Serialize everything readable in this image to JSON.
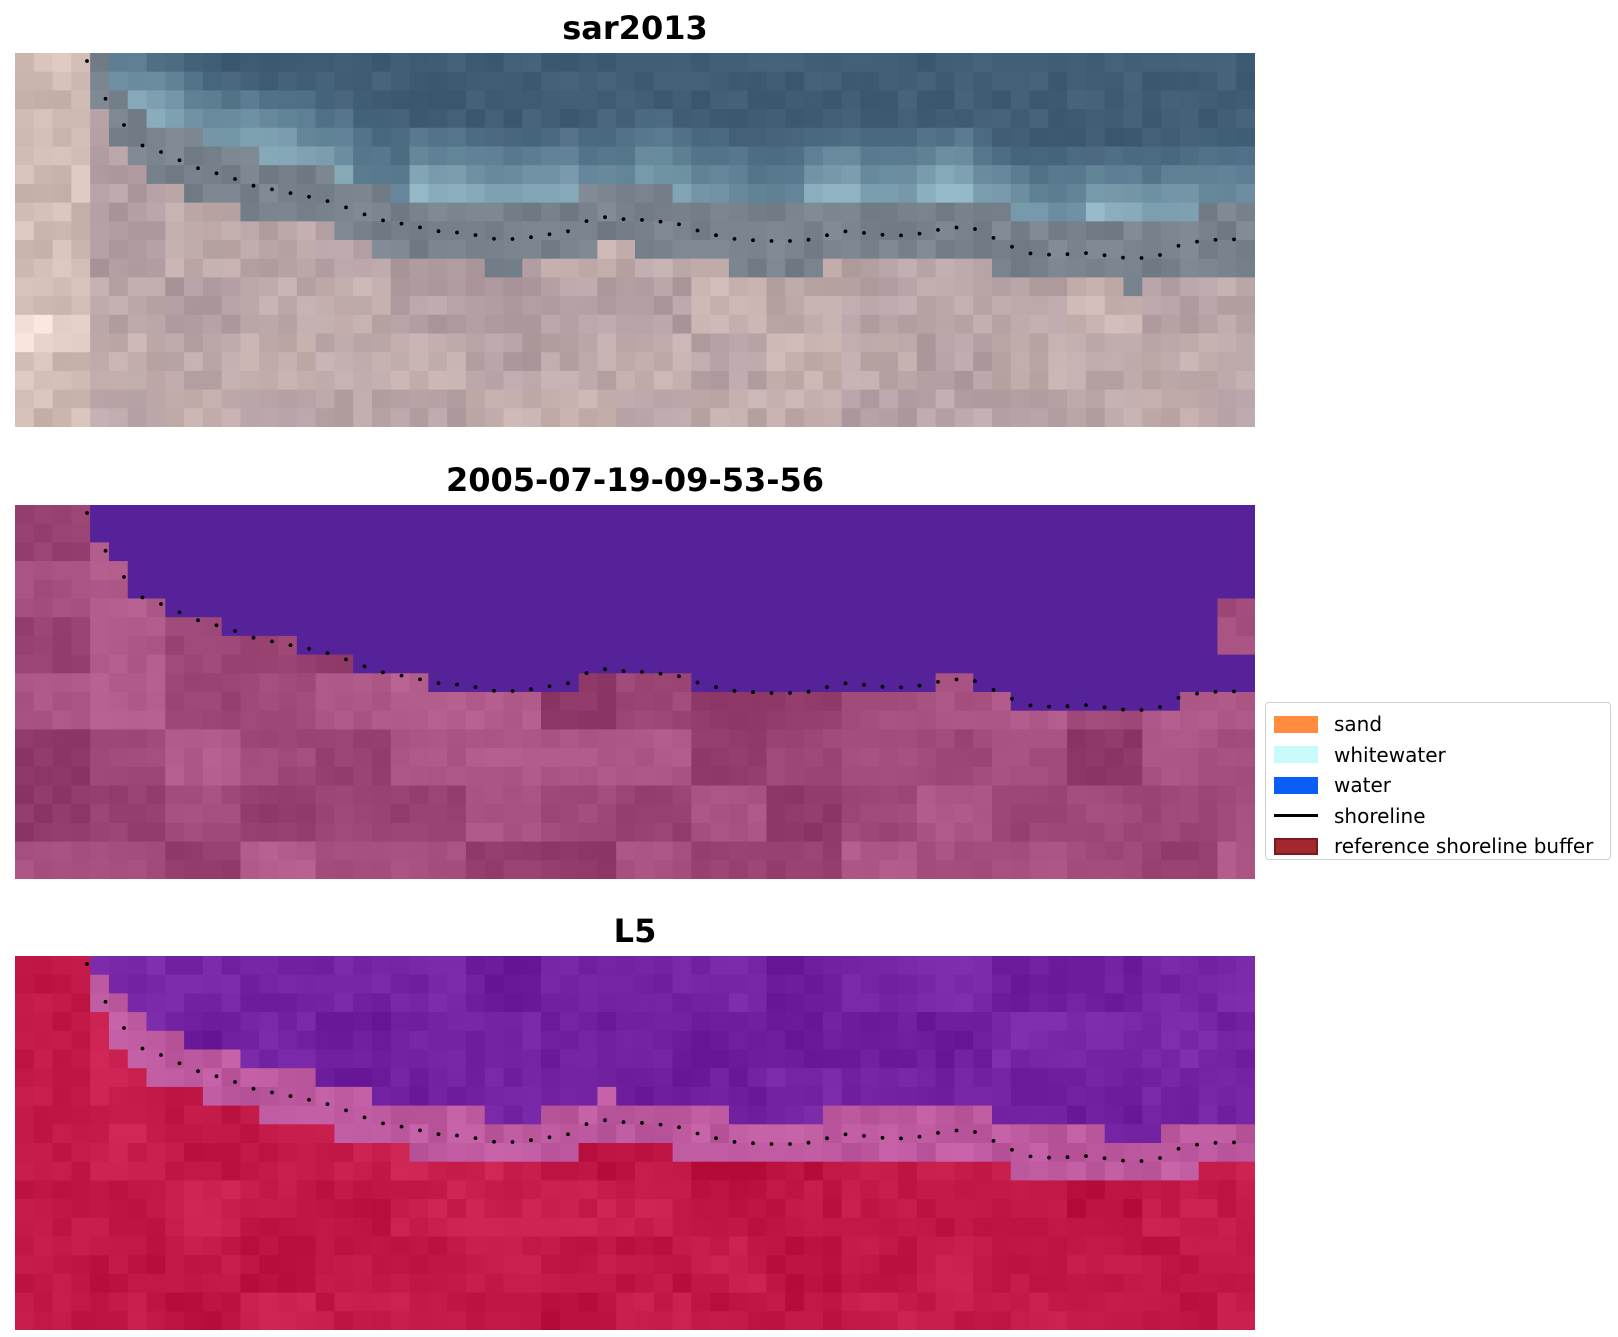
{
  "panels": [
    {
      "id": "rgb",
      "title": "sar2013"
    },
    {
      "id": "classified",
      "title": "2005-07-19-09-53-56"
    },
    {
      "id": "mndwi",
      "title": "L5"
    }
  ],
  "legend": {
    "items": [
      {
        "label": "sand",
        "type": "patch",
        "color": "#ff8c3f"
      },
      {
        "label": "whitewater",
        "type": "patch",
        "color": "#c8fafa"
      },
      {
        "label": "water",
        "type": "patch",
        "color": "#0a5ef5"
      },
      {
        "label": "shoreline",
        "type": "line",
        "color": "#000000"
      },
      {
        "label": "reference shoreline buffer",
        "type": "patch",
        "color": "#a3272f"
      }
    ]
  },
  "colors": {
    "rgb_water": "#3f5e76",
    "rgb_whitewater": "#bfe6ee",
    "rgb_sand": "#d2bdb6",
    "class_water": "#55229a",
    "class_land": "#a04a7a",
    "ndwi_water": "#7222a0",
    "ndwi_land": "#c21848",
    "shoreline": "#000000"
  }
}
